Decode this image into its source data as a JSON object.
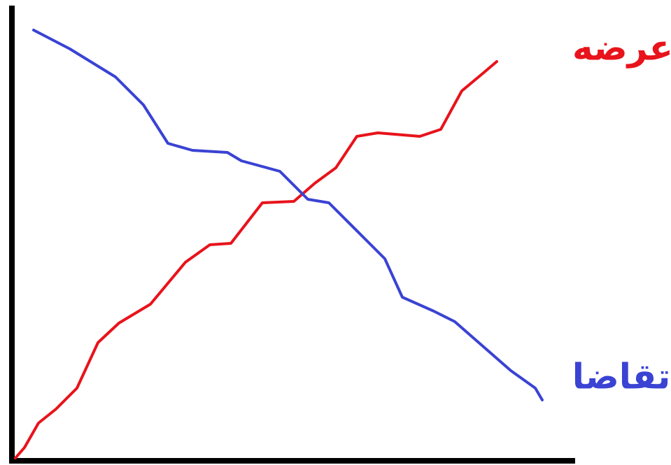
{
  "labels": {
    "supply": "عرضه",
    "demand": "تقاضا"
  }
}
